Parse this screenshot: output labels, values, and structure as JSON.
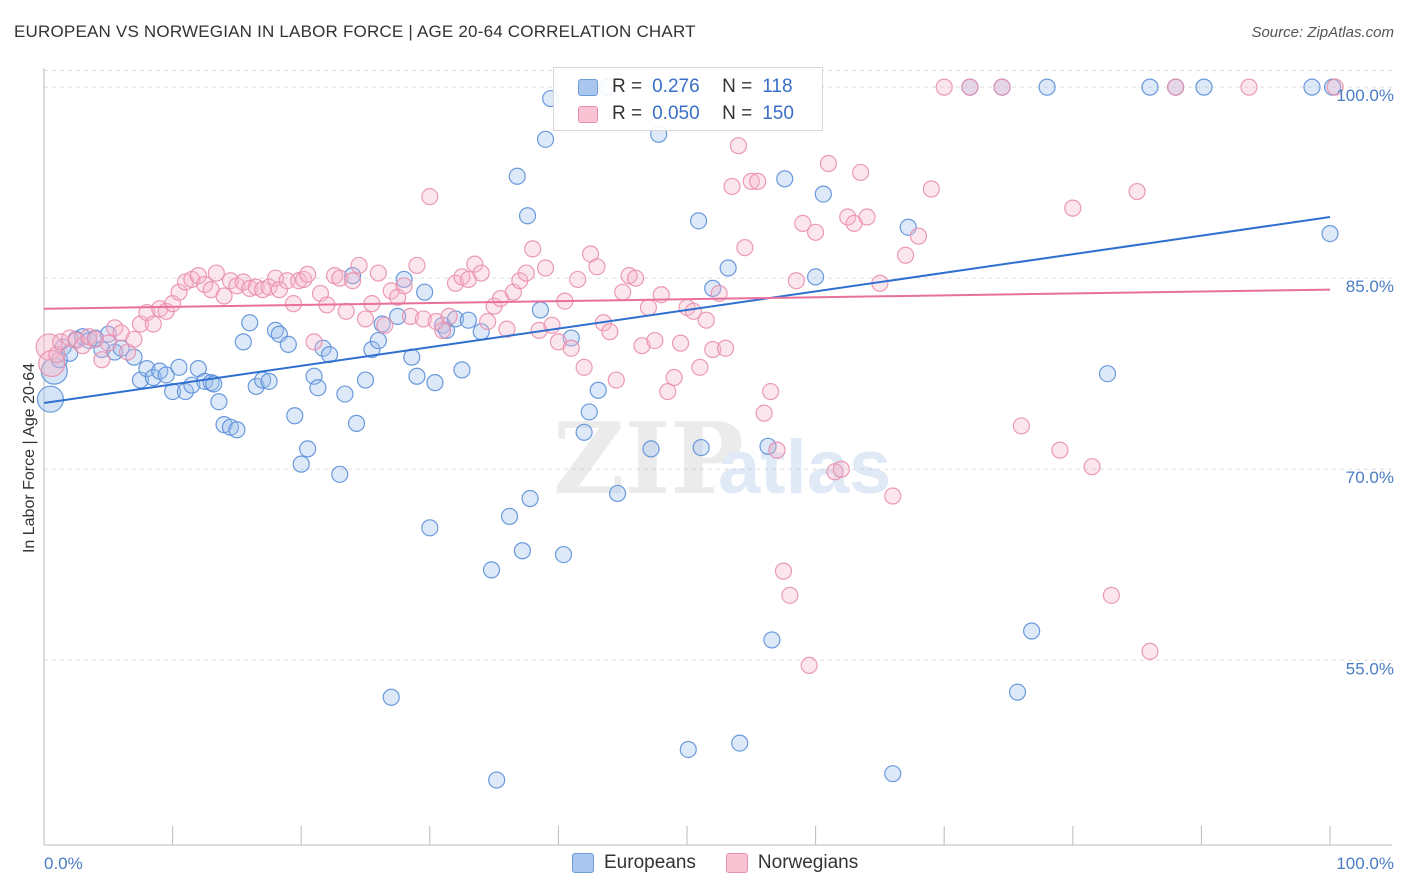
{
  "header": {
    "title": "EUROPEAN VS NORWEGIAN IN LABOR FORCE | AGE 20-64 CORRELATION CHART",
    "source": "Source: ZipAtlas.com"
  },
  "legend": {
    "r_label": "R =",
    "n_label": "N =",
    "rows": [
      {
        "r": "0.276",
        "n": "118",
        "color": "#5b8fd9"
      },
      {
        "r": "0.050",
        "n": "150",
        "color": "#e87fa3"
      }
    ]
  },
  "bottom_legend": [
    "Europeans",
    "Norwegians"
  ],
  "watermark": {
    "zip": "ZIP",
    "atlas": "atlas"
  },
  "chart_data": {
    "type": "scatter",
    "title": "EUROPEAN VS NORWEGIAN IN LABOR FORCE | AGE 20-64 CORRELATION CHART",
    "xlabel": "",
    "ylabel": "In Labor Force | Age 20-64",
    "xlim": [
      0,
      100
    ],
    "ylim": [
      40.5,
      101.5
    ],
    "x_tick_labels": [
      "0.0%",
      "100.0%"
    ],
    "y_ticks": [
      55,
      70,
      85,
      100
    ],
    "y_tick_labels": [
      "55.0%",
      "70.0%",
      "85.0%",
      "100.0%"
    ],
    "grid": true,
    "colors": {
      "Europeans": "#5b8fd9",
      "Norwegians": "#e87fa3",
      "Europeans_line": "#2f6fd0",
      "Norwegians_line": "#e8709a"
    },
    "series": [
      {
        "name": "Europeans",
        "R": 0.276,
        "N": 118,
        "trend": [
          [
            0,
            75.2
          ],
          [
            100,
            89.8
          ]
        ],
        "points": [
          [
            0.5,
            75.5
          ],
          [
            0.8,
            77.7
          ],
          [
            1.2,
            78.6
          ],
          [
            1.5,
            79.6
          ],
          [
            2,
            79.1
          ],
          [
            2.5,
            80.2
          ],
          [
            3,
            80.4
          ],
          [
            3.5,
            80.1
          ],
          [
            4,
            80.3
          ],
          [
            4.5,
            79.4
          ],
          [
            5,
            80.6
          ],
          [
            5.5,
            79.2
          ],
          [
            6,
            79.5
          ],
          [
            7,
            78.8
          ],
          [
            7.5,
            77.0
          ],
          [
            8,
            77.9
          ],
          [
            8.5,
            77.2
          ],
          [
            9,
            77.7
          ],
          [
            9.5,
            77.4
          ],
          [
            10,
            76.1
          ],
          [
            10.5,
            78.0
          ],
          [
            11,
            76.1
          ],
          [
            11.5,
            76.6
          ],
          [
            12,
            77.9
          ],
          [
            12.5,
            76.9
          ],
          [
            13,
            76.8
          ],
          [
            13.2,
            76.7
          ],
          [
            13.6,
            75.3
          ],
          [
            14,
            73.5
          ],
          [
            14.5,
            73.3
          ],
          [
            15,
            73.1
          ],
          [
            15.5,
            80.0
          ],
          [
            16,
            81.5
          ],
          [
            16.5,
            76.5
          ],
          [
            17,
            77.0
          ],
          [
            17.5,
            76.9
          ],
          [
            18,
            80.9
          ],
          [
            18.3,
            80.6
          ],
          [
            19,
            79.8
          ],
          [
            19.5,
            74.2
          ],
          [
            20,
            70.4
          ],
          [
            20.5,
            71.6
          ],
          [
            21,
            77.3
          ],
          [
            21.3,
            76.4
          ],
          [
            21.7,
            79.5
          ],
          [
            22.2,
            79.0
          ],
          [
            23,
            69.6
          ],
          [
            23.4,
            75.9
          ],
          [
            24,
            85.2
          ],
          [
            24.3,
            73.6
          ],
          [
            25,
            77.0
          ],
          [
            25.5,
            79.4
          ],
          [
            26,
            80.1
          ],
          [
            26.3,
            81.4
          ],
          [
            27,
            52.1
          ],
          [
            27.5,
            82.0
          ],
          [
            28,
            84.9
          ],
          [
            28.6,
            78.8
          ],
          [
            29,
            77.3
          ],
          [
            29.6,
            83.9
          ],
          [
            30,
            65.4
          ],
          [
            30.4,
            76.8
          ],
          [
            31,
            81.3
          ],
          [
            31.3,
            80.9
          ],
          [
            32,
            81.8
          ],
          [
            32.5,
            77.8
          ],
          [
            33,
            81.7
          ],
          [
            34,
            80.8
          ],
          [
            34.8,
            62.1
          ],
          [
            35.2,
            45.6
          ],
          [
            36.2,
            66.3
          ],
          [
            36.8,
            93.0
          ],
          [
            37.2,
            63.6
          ],
          [
            37.6,
            89.9
          ],
          [
            37.8,
            67.7
          ],
          [
            38.6,
            82.5
          ],
          [
            39,
            95.9
          ],
          [
            39.4,
            99.1
          ],
          [
            40.4,
            63.3
          ],
          [
            41,
            80.3
          ],
          [
            42,
            72.9
          ],
          [
            42.4,
            74.5
          ],
          [
            43.1,
            76.2
          ],
          [
            43.8,
            100
          ],
          [
            44.6,
            68.1
          ],
          [
            47.2,
            71.6
          ],
          [
            47.8,
            96.3
          ],
          [
            49,
            100
          ],
          [
            50.1,
            48.0
          ],
          [
            50.9,
            89.5
          ],
          [
            51.1,
            71.7
          ],
          [
            52.0,
            84.2
          ],
          [
            53.2,
            85.8
          ],
          [
            54.1,
            48.5
          ],
          [
            56.3,
            71.8
          ],
          [
            56.6,
            56.6
          ],
          [
            57.6,
            92.8
          ],
          [
            60,
            85.1
          ],
          [
            60.6,
            91.6
          ],
          [
            66,
            46.1
          ],
          [
            67.2,
            89.0
          ],
          [
            72.0,
            100
          ],
          [
            74.5,
            100
          ],
          [
            75.7,
            52.5
          ],
          [
            76.8,
            57.3
          ],
          [
            78,
            100
          ],
          [
            82.7,
            77.5
          ],
          [
            86,
            100
          ],
          [
            88,
            100
          ],
          [
            90.2,
            100
          ],
          [
            98.6,
            100
          ],
          [
            100,
            88.5
          ],
          [
            100.2,
            100
          ]
        ]
      },
      {
        "name": "Norwegians",
        "R": 0.05,
        "N": 150,
        "trend": [
          [
            0,
            82.6
          ],
          [
            100,
            84.1
          ]
        ],
        "points": [
          [
            0.4,
            79.6
          ],
          [
            0.6,
            78.3
          ],
          [
            1,
            79.0
          ],
          [
            1.3,
            80.0
          ],
          [
            2,
            80.3
          ],
          [
            2.5,
            80.1
          ],
          [
            3,
            79.7
          ],
          [
            3.5,
            80.4
          ],
          [
            4,
            80.2
          ],
          [
            4.5,
            78.6
          ],
          [
            5,
            79.9
          ],
          [
            5.5,
            81.1
          ],
          [
            6,
            80.7
          ],
          [
            6.5,
            79.2
          ],
          [
            7,
            80.2
          ],
          [
            7.5,
            81.4
          ],
          [
            8,
            82.3
          ],
          [
            8.5,
            81.4
          ],
          [
            9,
            82.6
          ],
          [
            9.5,
            82.4
          ],
          [
            10,
            83.0
          ],
          [
            10.5,
            83.9
          ],
          [
            11,
            84.7
          ],
          [
            11.5,
            84.9
          ],
          [
            12,
            85.2
          ],
          [
            12.5,
            84.5
          ],
          [
            13,
            84.1
          ],
          [
            13.4,
            85.4
          ],
          [
            14,
            83.6
          ],
          [
            14.5,
            84.8
          ],
          [
            15,
            84.4
          ],
          [
            15.5,
            84.7
          ],
          [
            16,
            84.2
          ],
          [
            16.5,
            84.3
          ],
          [
            17,
            84.1
          ],
          [
            17.5,
            84.3
          ],
          [
            18,
            85.0
          ],
          [
            18.3,
            84.1
          ],
          [
            18.9,
            84.8
          ],
          [
            19.4,
            83.0
          ],
          [
            19.8,
            84.8
          ],
          [
            20.2,
            84.9
          ],
          [
            20.5,
            85.3
          ],
          [
            21,
            80.0
          ],
          [
            21.5,
            83.8
          ],
          [
            22,
            82.9
          ],
          [
            22.6,
            85.2
          ],
          [
            23,
            85.0
          ],
          [
            23.5,
            82.4
          ],
          [
            24,
            84.8
          ],
          [
            24.5,
            86.0
          ],
          [
            25,
            81.8
          ],
          [
            25.5,
            83.0
          ],
          [
            26,
            85.4
          ],
          [
            26.5,
            81.3
          ],
          [
            27,
            84.0
          ],
          [
            27.5,
            83.5
          ],
          [
            28,
            84.4
          ],
          [
            28.5,
            82.0
          ],
          [
            29,
            86.0
          ],
          [
            29.5,
            81.8
          ],
          [
            30,
            91.4
          ],
          [
            30.5,
            81.6
          ],
          [
            31,
            80.9
          ],
          [
            31.5,
            82.0
          ],
          [
            32,
            84.6
          ],
          [
            32.5,
            85.1
          ],
          [
            33,
            84.9
          ],
          [
            33.5,
            86.1
          ],
          [
            34,
            85.4
          ],
          [
            34.5,
            81.6
          ],
          [
            35,
            82.8
          ],
          [
            35.5,
            83.4
          ],
          [
            36,
            81.0
          ],
          [
            36.5,
            83.9
          ],
          [
            37,
            84.8
          ],
          [
            37.5,
            85.4
          ],
          [
            38,
            87.3
          ],
          [
            38.5,
            80.9
          ],
          [
            39,
            85.8
          ],
          [
            39.5,
            81.3
          ],
          [
            40,
            80.0
          ],
          [
            40.5,
            83.2
          ],
          [
            41,
            79.5
          ],
          [
            41.5,
            84.9
          ],
          [
            42,
            78.0
          ],
          [
            42.5,
            86.9
          ],
          [
            43,
            85.9
          ],
          [
            43.5,
            81.5
          ],
          [
            44,
            80.8
          ],
          [
            44.5,
            77.0
          ],
          [
            45,
            83.9
          ],
          [
            45.5,
            85.2
          ],
          [
            46,
            85.0
          ],
          [
            46.5,
            79.7
          ],
          [
            47,
            82.7
          ],
          [
            47.5,
            80.1
          ],
          [
            48,
            83.7
          ],
          [
            48.5,
            76.1
          ],
          [
            49,
            77.2
          ],
          [
            49.5,
            79.9
          ],
          [
            50,
            82.7
          ],
          [
            50.5,
            82.4
          ],
          [
            51,
            78.0
          ],
          [
            51.5,
            81.7
          ],
          [
            52,
            79.4
          ],
          [
            52.5,
            83.8
          ],
          [
            53,
            79.5
          ],
          [
            53.5,
            92.2
          ],
          [
            54,
            95.4
          ],
          [
            54.5,
            87.4
          ],
          [
            55,
            92.6
          ],
          [
            55.5,
            92.6
          ],
          [
            56,
            74.4
          ],
          [
            56.5,
            76.1
          ],
          [
            57,
            71.5
          ],
          [
            57.5,
            62.0
          ],
          [
            58,
            60.1
          ],
          [
            58.5,
            84.8
          ],
          [
            59,
            89.3
          ],
          [
            59.5,
            54.6
          ],
          [
            60,
            88.6
          ],
          [
            61,
            94.0
          ],
          [
            61.5,
            69.8
          ],
          [
            62,
            70.0
          ],
          [
            62.5,
            89.8
          ],
          [
            63,
            89.3
          ],
          [
            63.5,
            93.3
          ],
          [
            64,
            89.8
          ],
          [
            65,
            84.6
          ],
          [
            66,
            67.9
          ],
          [
            67,
            86.8
          ],
          [
            68,
            88.3
          ],
          [
            69,
            92.0
          ],
          [
            70,
            100
          ],
          [
            72,
            100
          ],
          [
            74.5,
            100
          ],
          [
            76,
            73.4
          ],
          [
            79,
            71.5
          ],
          [
            80,
            90.5
          ],
          [
            81.5,
            70.2
          ],
          [
            83,
            60.1
          ],
          [
            85,
            91.8
          ],
          [
            86,
            55.7
          ],
          [
            88,
            100
          ],
          [
            93.7,
            100
          ],
          [
            100.4,
            100
          ]
        ]
      }
    ]
  }
}
